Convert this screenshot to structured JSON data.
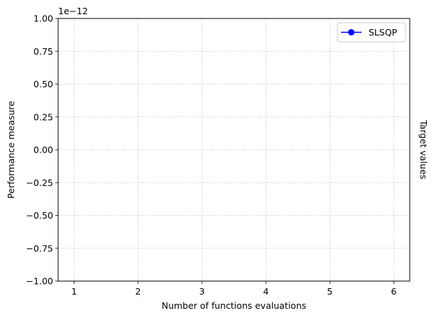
{
  "chart_data": {
    "type": "line",
    "x": [],
    "xlim": [
      0.75,
      6.25
    ],
    "xticks": [
      1,
      2,
      3,
      4,
      5,
      6
    ],
    "xtick_labels": [
      "1",
      "2",
      "3",
      "4",
      "5",
      "6"
    ],
    "ylim": [
      -1.0,
      1.0
    ],
    "yticks": [
      -1.0,
      -0.75,
      -0.5,
      -0.25,
      0.0,
      0.25,
      0.5,
      0.75,
      1.0
    ],
    "ytick_labels": [
      "−1.00",
      "−0.75",
      "−0.50",
      "−0.25",
      "0.00",
      "0.25",
      "0.50",
      "0.75",
      "1.00"
    ],
    "y_offset_label": "1e−12",
    "xlabel": "Number of functions evaluations",
    "ylabel": "Performance measure",
    "right_label": "Target values",
    "grid": true,
    "legend_position": "upper right",
    "series": [
      {
        "name": "SLSQP",
        "color": "#0000ff",
        "marker": "circle",
        "values": []
      }
    ]
  }
}
